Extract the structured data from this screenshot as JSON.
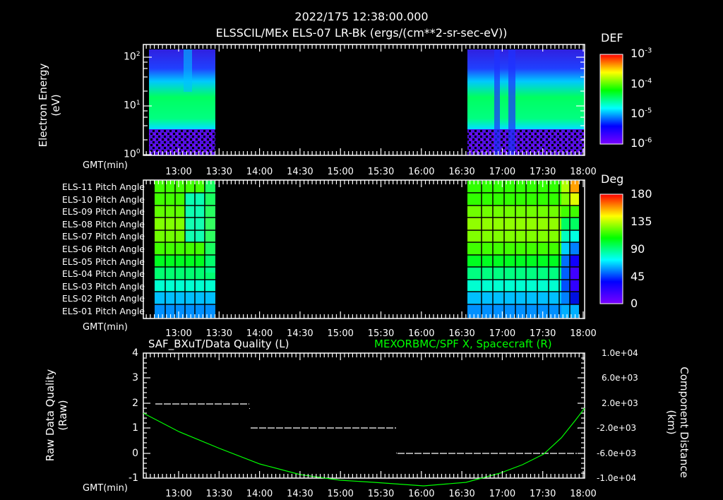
{
  "header": {
    "timestamp": "2022/175 12:38:00.000",
    "subtitle": "ELSSCIL/MEx ELS-07 LR-Bk  (ergs/(cm**2-sr-sec-eV))"
  },
  "panel1": {
    "ylabel_line1": "Electron Energy",
    "ylabel_line2": "(eV)",
    "yticks": [
      "10",
      "10",
      "10"
    ],
    "yticks_exp": [
      "2",
      "1",
      "0"
    ],
    "xaxis_label": "GMT(min)",
    "colorbar_title": "DEF",
    "colorbar_ticks": [
      "10",
      "10",
      "10",
      "10"
    ],
    "colorbar_exps": [
      "-3",
      "-4",
      "-5",
      "-6"
    ]
  },
  "panel2": {
    "rows": [
      "ELS-11 Pitch Angle",
      "ELS-10 Pitch Angle",
      "ELS-09 Pitch Angle",
      "ELS-08 Pitch Angle",
      "ELS-07 Pitch Angle",
      "ELS-06 Pitch Angle",
      "ELS-05 Pitch Angle",
      "ELS-04 Pitch Angle",
      "ELS-03 Pitch Angle",
      "ELS-02 Pitch Angle",
      "ELS-01 Pitch Angle"
    ],
    "xaxis_label": "GMT(min)",
    "colorbar_title": "Deg",
    "colorbar_ticks": [
      "180",
      "135",
      "90",
      "45",
      "0"
    ]
  },
  "panel3": {
    "left_title": "SAF_BXuT/Data Quality (L)",
    "right_title": "MEXORBMC/SPF X, Spacecraft (R)",
    "ylabel_line1": "Raw Data Quality",
    "ylabel_line2": "(Raw)",
    "yticks": [
      "4",
      "3",
      "2",
      "1",
      "0",
      "-1"
    ],
    "right_yticks": [
      "1.0e+04",
      "6.0e+03",
      "2.0e+03",
      "-2.0e+03",
      "-6.0e+03",
      "-1.0e+04"
    ],
    "right_label_line1": "Component Distance",
    "right_label_line2": "(km)",
    "xaxis_label": "GMT(min)"
  },
  "xticks": [
    "13:00",
    "13:30",
    "14:00",
    "14:30",
    "15:00",
    "15:30",
    "16:00",
    "16:30",
    "17:00",
    "17:30",
    "18:00"
  ],
  "colors": {
    "background": "#000000",
    "axes": "#ffffff",
    "spacecraft_line": "#00ff00",
    "quality_line": "#ffffff"
  },
  "chart_data": [
    {
      "type": "heatmap",
      "title": "ELSSCIL/MEx ELS-07 LR-Bk (ergs/(cm**2-sr-sec-eV))",
      "xlabel": "GMT(min)",
      "ylabel": "Electron Energy (eV)",
      "yscale": "log",
      "ylim": [
        1,
        150
      ],
      "x_ticks": [
        "13:00",
        "13:30",
        "14:00",
        "14:30",
        "15:00",
        "15:30",
        "16:00",
        "16:30",
        "17:00",
        "17:30",
        "18:00"
      ],
      "data_intervals": [
        [
          "12:35",
          "13:25"
        ],
        [
          "16:37",
          "18:03"
        ]
      ],
      "colorbar": {
        "label": "DEF",
        "scale": "log",
        "range": [
          1e-06,
          0.001
        ]
      },
      "description": "Peak DEF ~1e-4 in 5-40 eV band; low values below ~4 eV"
    },
    {
      "type": "heatmap",
      "title": "Pitch Angle",
      "xlabel": "GMT(min)",
      "rows": [
        "ELS-11",
        "ELS-10",
        "ELS-09",
        "ELS-08",
        "ELS-07",
        "ELS-06",
        "ELS-05",
        "ELS-04",
        "ELS-03",
        "ELS-02",
        "ELS-01"
      ],
      "colorbar": {
        "label": "Deg",
        "range": [
          0,
          180
        ],
        "ticks": [
          0,
          45,
          90,
          135,
          180
        ]
      },
      "approx_values_first_interval": [
        95,
        100,
        110,
        115,
        110,
        100,
        95,
        85,
        70,
        55,
        50
      ],
      "approx_values_second_interval": [
        100,
        105,
        115,
        120,
        115,
        100,
        95,
        85,
        70,
        55,
        50
      ]
    },
    {
      "type": "line",
      "title": "SAF_BXuT/Data Quality (L) / MEXORBMC/SPF X, Spacecraft (R)",
      "xlabel": "GMT(min)",
      "ylabel": "Raw Data Quality (Raw)",
      "ylim": [
        -1,
        4
      ],
      "y2label": "Component Distance (km)",
      "y2lim": [
        -10000,
        10000
      ],
      "series": [
        {
          "name": "Data Quality (L)",
          "segments": [
            {
              "x": [
                "12:38",
                "13:48"
              ],
              "y": 2
            },
            {
              "x": [
                "13:50",
                "15:40"
              ],
              "y": 1
            },
            {
              "x": [
                "15:42",
                "17:58"
              ],
              "y": 0
            }
          ]
        },
        {
          "name": "SPF X Spacecraft (R)",
          "x": [
            "12:35",
            "13:00",
            "13:30",
            "14:00",
            "14:30",
            "15:00",
            "15:30",
            "16:00",
            "16:30",
            "17:00",
            "17:30",
            "18:00"
          ],
          "y": [
            2600,
            1000,
            -1000,
            -3500,
            -6000,
            -8500,
            -10000,
            -10500,
            -10000,
            -8000,
            -4500,
            1200
          ]
        }
      ]
    }
  ]
}
